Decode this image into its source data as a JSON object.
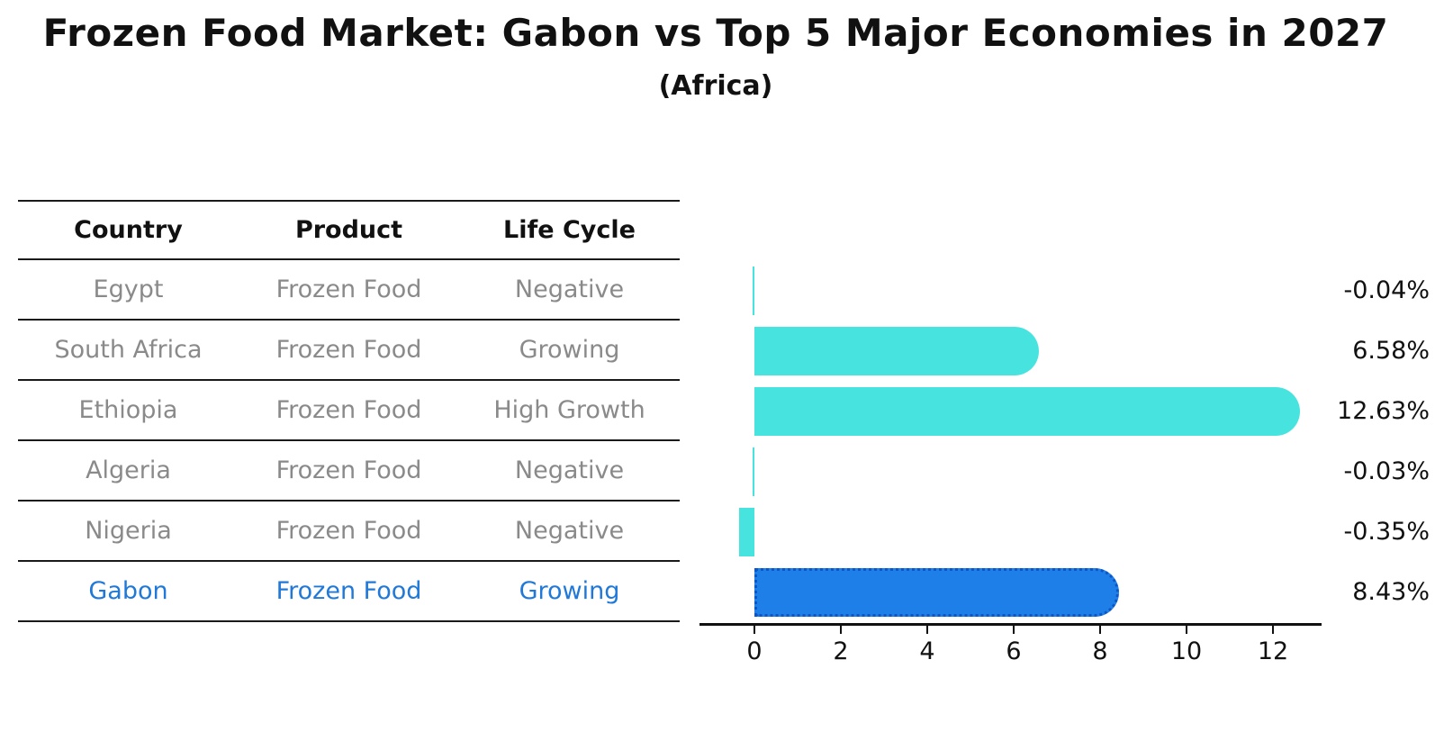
{
  "title": "Frozen Food Market: Gabon vs Top 5 Major Economies in 2027",
  "subtitle": "(Africa)",
  "table": {
    "headers": [
      "Country",
      "Product",
      "Life Cycle"
    ],
    "rows": [
      {
        "country": "Egypt",
        "product": "Frozen Food",
        "life_cycle": "Negative",
        "highlight": false
      },
      {
        "country": "South Africa",
        "product": "Frozen Food",
        "life_cycle": "Growing",
        "highlight": false
      },
      {
        "country": "Ethiopia",
        "product": "Frozen Food",
        "life_cycle": "High Growth",
        "highlight": false
      },
      {
        "country": "Algeria",
        "product": "Frozen Food",
        "life_cycle": "Negative",
        "highlight": false
      },
      {
        "country": "Nigeria",
        "product": "Frozen Food",
        "life_cycle": "Negative",
        "highlight": false
      },
      {
        "country": "Gabon",
        "product": "Frozen Food",
        "life_cycle": "Growing",
        "highlight": true
      }
    ]
  },
  "chart_data": {
    "type": "bar",
    "orientation": "horizontal",
    "title": "Frozen Food Market: Gabon vs Top 5 Major Economies in 2027 (Africa)",
    "categories": [
      "Egypt",
      "South Africa",
      "Ethiopia",
      "Algeria",
      "Nigeria",
      "Gabon"
    ],
    "values": [
      -0.04,
      6.58,
      12.63,
      -0.03,
      -0.35,
      8.43
    ],
    "value_labels": [
      "-0.04%",
      "6.58%",
      "12.63%",
      "-0.03%",
      "-0.35%",
      "8.43%"
    ],
    "x_tick_labels": [
      "0",
      "2",
      "4",
      "6",
      "8",
      "10",
      "12"
    ],
    "x_tick_values": [
      0,
      2,
      4,
      6,
      8,
      10,
      12
    ],
    "xlim": [
      -1.3,
      13.1
    ],
    "ylabel": "",
    "xlabel": "",
    "grid": false,
    "legend": false,
    "highlight_index": 5
  },
  "colors": {
    "bar": "#47e4df",
    "highlight_bar": "#1f7fe8",
    "highlight_bar_edge": "#0d56c6",
    "highlight_text": "#2079d8",
    "table_text": "#8a8a8a",
    "header_text": "#111111",
    "axis": "#111111"
  }
}
